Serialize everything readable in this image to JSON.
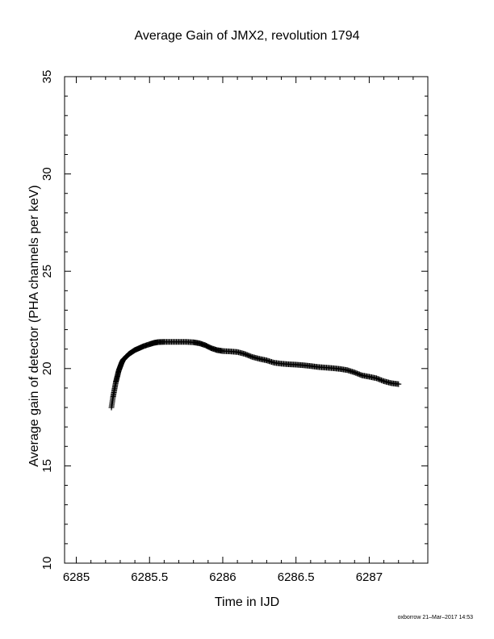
{
  "chart_data": {
    "type": "scatter",
    "title": "Average Gain of JMX2, revolution 1794",
    "xlabel": "Time in IJD",
    "ylabel": "Average gain of detector (PHA channels per keV)",
    "xlim": [
      6284.92,
      6287.4
    ],
    "ylim": [
      10,
      35
    ],
    "xticks": [
      6285,
      6285.5,
      6286,
      6286.5,
      6287
    ],
    "xtick_labels": [
      "6285",
      "6285.5",
      "6286",
      "6286.5",
      "6287"
    ],
    "yticks": [
      10,
      15,
      20,
      25,
      30,
      35
    ],
    "ytick_labels": [
      "10",
      "15",
      "20",
      "25",
      "30",
      "35"
    ],
    "marker": "+",
    "grid": false,
    "series": [
      {
        "x": [
          6285.24,
          6285.25,
          6285.26,
          6285.27,
          6285.28,
          6285.29,
          6285.3,
          6285.31,
          6285.32,
          6285.34,
          6285.36,
          6285.38,
          6285.4,
          6285.43,
          6285.46,
          6285.5,
          6285.53,
          6285.56,
          6285.6,
          6285.65,
          6285.7,
          6285.75,
          6285.8,
          6285.84,
          6285.88,
          6285.92,
          6285.96,
          6286.0,
          6286.05,
          6286.1,
          6286.15,
          6286.2,
          6286.25,
          6286.3,
          6286.35,
          6286.4,
          6286.45,
          6286.5,
          6286.55,
          6286.6,
          6286.65,
          6286.7,
          6286.75,
          6286.8,
          6286.85,
          6286.9,
          6286.95,
          6287.0,
          6287.05,
          6287.1,
          6287.15,
          6287.2
        ],
        "y": [
          18.0,
          18.5,
          18.9,
          19.3,
          19.6,
          19.9,
          20.1,
          20.3,
          20.45,
          20.6,
          20.75,
          20.85,
          20.95,
          21.05,
          21.15,
          21.25,
          21.32,
          21.36,
          21.37,
          21.37,
          21.37,
          21.37,
          21.35,
          21.3,
          21.2,
          21.05,
          20.95,
          20.9,
          20.88,
          20.85,
          20.75,
          20.6,
          20.5,
          20.42,
          20.3,
          20.25,
          20.22,
          20.2,
          20.17,
          20.13,
          20.08,
          20.05,
          20.02,
          19.98,
          19.92,
          19.8,
          19.65,
          19.58,
          19.5,
          19.35,
          19.25,
          19.2
        ]
      }
    ]
  },
  "credit": "oxborrow 21–Mar–2017 14:53"
}
